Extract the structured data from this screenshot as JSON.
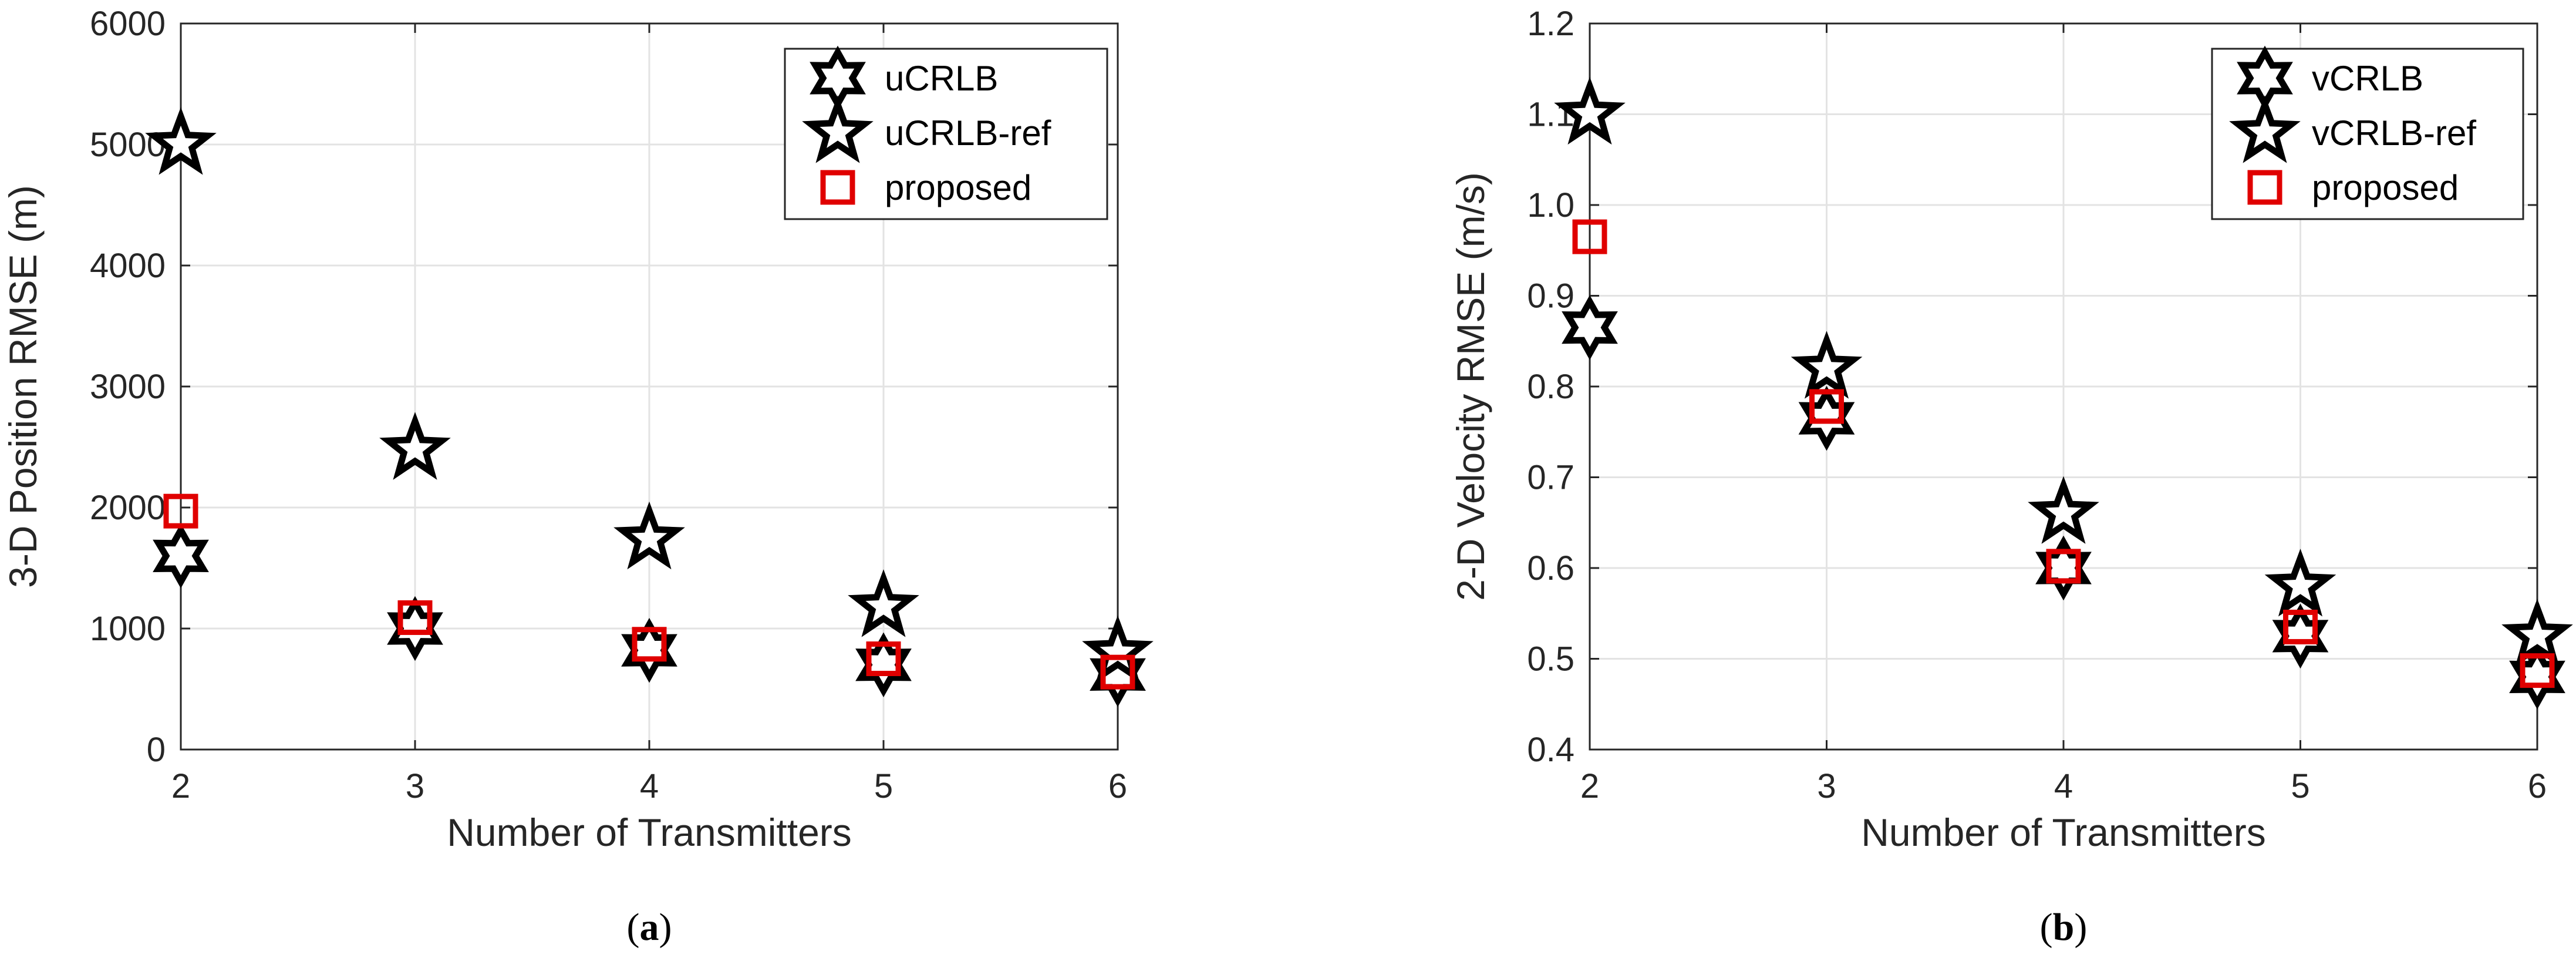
{
  "chart_data": [
    {
      "type": "scatter",
      "panel_label": {
        "open": "(",
        "letter": "a",
        "close": ")"
      },
      "xlabel": "Number of Transmitters",
      "ylabel": "3-D Position RMSE (m)",
      "x": [
        2,
        3,
        4,
        5,
        6
      ],
      "xlim": [
        2,
        6
      ],
      "ylim": [
        0,
        6000
      ],
      "xticks": [
        2,
        3,
        4,
        5,
        6
      ],
      "yticks": [
        0,
        1000,
        2000,
        3000,
        4000,
        5000,
        6000
      ],
      "grid": true,
      "legend_position": "top-right",
      "series": [
        {
          "name": "uCRLB",
          "marker": "hexagram",
          "color": "#000000",
          "values": [
            1600,
            1000,
            820,
            700,
            620
          ]
        },
        {
          "name": "uCRLB-ref",
          "marker": "star",
          "color": "#000000",
          "values": [
            5000,
            2480,
            1740,
            1180,
            800
          ]
        },
        {
          "name": "proposed",
          "marker": "square",
          "color": "#e00000",
          "values": [
            1970,
            1090,
            870,
            750,
            640
          ]
        }
      ]
    },
    {
      "type": "scatter",
      "panel_label": {
        "open": "(",
        "letter": "b",
        "close": ")"
      },
      "xlabel": "Number of Transmitters",
      "ylabel": "2-D Velocity RMSE (m/s)",
      "x": [
        2,
        3,
        4,
        5,
        6
      ],
      "xlim": [
        2,
        6
      ],
      "ylim": [
        0.4,
        1.2
      ],
      "xticks": [
        2,
        3,
        4,
        5,
        6
      ],
      "yticks": [
        0.4,
        0.5,
        0.6,
        0.7,
        0.8,
        0.9,
        1.0,
        1.1,
        1.2
      ],
      "ytick_labels": [
        "0.4",
        "0.5",
        "0.6",
        "0.7",
        "0.8",
        "0.9",
        "1.0",
        "1.1",
        "1.2"
      ],
      "grid": true,
      "legend_position": "top-right",
      "series": [
        {
          "name": "vCRLB",
          "marker": "hexagram",
          "color": "#000000",
          "values": [
            0.865,
            0.765,
            0.6,
            0.525,
            0.48
          ]
        },
        {
          "name": "vCRLB-ref",
          "marker": "star",
          "color": "#000000",
          "values": [
            1.1,
            0.82,
            0.66,
            0.58,
            0.525
          ]
        },
        {
          "name": "proposed",
          "marker": "square",
          "color": "#e00000",
          "values": [
            0.965,
            0.778,
            0.602,
            0.535,
            0.487
          ]
        }
      ]
    }
  ]
}
